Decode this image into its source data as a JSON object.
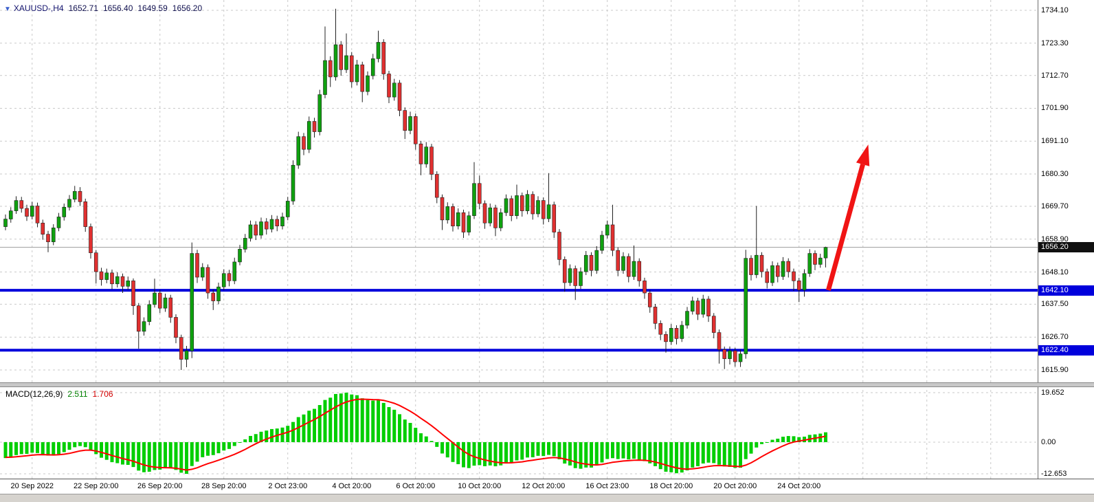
{
  "header": {
    "dropdown_icon": "▼",
    "symbol": "XAUUSD-,H4",
    "open": "1652.71",
    "high": "1656.40",
    "low": "1649.59",
    "close": "1656.20"
  },
  "price_axis": {
    "labels": [
      "1734.10",
      "1723.30",
      "1712.70",
      "1701.90",
      "1691.10",
      "1680.30",
      "1669.70",
      "1658.90",
      "1648.10",
      "1637.50",
      "1626.70",
      "1615.90"
    ],
    "current_tag": "1656.20",
    "line_tags": [
      "1642.10",
      "1622.40"
    ]
  },
  "macd_panel": {
    "label": "MACD(12,26,9)",
    "main_value": "2.511",
    "signal_value": "1.706",
    "axis_labels": [
      "19.652",
      "0.00",
      "-12.653"
    ]
  },
  "annotations": {
    "current_price": 1656.2,
    "horizontal_lines": [
      {
        "price": 1642.1,
        "color": "#0000dc"
      },
      {
        "price": 1622.4,
        "color": "#0000dc"
      }
    ],
    "arrow": {
      "from_index": 154.5,
      "from_price": 1642.1,
      "to_index": 162,
      "to_price": 1690.0,
      "color": "#f01414"
    }
  },
  "colors": {
    "background": "#ffffff",
    "grid": "#c9c9c9",
    "bull_candle": "#0fa00f",
    "bear_candle": "#e03030",
    "wick": "#202020",
    "sr_line": "#0000dc",
    "last_price_line": "#9c9c9c",
    "macd_histogram": "#00ce00",
    "macd_signal": "#ff0000",
    "arrow": "#f01414"
  },
  "chart_data": {
    "type": "candlestick",
    "symbol": "XAUUSD",
    "timeframe": "H4",
    "title": "XAUUSD-,H4 1652.71 1656.40 1649.59 1656.20",
    "price_axis_ticks": [
      1734.1,
      1723.3,
      1712.7,
      1701.9,
      1691.1,
      1680.3,
      1669.7,
      1658.9,
      1648.1,
      1637.5,
      1626.7,
      1615.9
    ],
    "x_tick_labels": [
      "20 Sep 2022",
      "22 Sep 20:00",
      "26 Sep 20:00",
      "28 Sep 20:00",
      "2 Oct 23:00",
      "4 Oct 20:00",
      "6 Oct 20:00",
      "10 Oct 20:00",
      "12 Oct 20:00",
      "16 Oct 23:00",
      "18 Oct 20:00",
      "20 Oct 20:00",
      "24 Oct 20:00"
    ],
    "x_tick_first_candle": 5,
    "x_tick_step": 12,
    "support_levels": [
      1642.1,
      1622.4
    ],
    "last_price": 1656.2,
    "indicator": {
      "name": "MACD",
      "params": [
        12,
        26,
        9
      ],
      "main": 2.511,
      "signal": 1.706,
      "scale_max": 19.652,
      "scale_min": -12.653
    },
    "candles": [
      [
        1663.0,
        1667.0,
        1661.8,
        1665.5
      ],
      [
        1665.5,
        1669.4,
        1664.3,
        1668.2
      ],
      [
        1668.2,
        1673.0,
        1667.2,
        1671.6
      ],
      [
        1671.6,
        1672.8,
        1667.6,
        1669.0
      ],
      [
        1669.0,
        1670.2,
        1664.9,
        1666.4
      ],
      [
        1666.4,
        1671.2,
        1665.4,
        1669.8
      ],
      [
        1669.8,
        1670.9,
        1662.8,
        1664.2
      ],
      [
        1664.2,
        1665.3,
        1658.7,
        1660.5
      ],
      [
        1660.5,
        1661.6,
        1654.6,
        1658.0
      ],
      [
        1658.0,
        1663.8,
        1656.9,
        1662.6
      ],
      [
        1662.6,
        1667.5,
        1661.5,
        1666.2
      ],
      [
        1666.2,
        1670.6,
        1665.0,
        1669.4
      ],
      [
        1669.4,
        1673.4,
        1668.3,
        1672.0
      ],
      [
        1672.0,
        1676.4,
        1671.0,
        1674.6
      ],
      [
        1674.6,
        1676.0,
        1669.8,
        1671.2
      ],
      [
        1671.2,
        1672.2,
        1661.3,
        1663.0
      ],
      [
        1663.0,
        1664.0,
        1652.5,
        1654.4
      ],
      [
        1654.4,
        1655.3,
        1644.3,
        1648.2
      ],
      [
        1648.2,
        1649.5,
        1643.6,
        1645.6
      ],
      [
        1645.6,
        1649.2,
        1644.4,
        1647.8
      ],
      [
        1647.8,
        1648.9,
        1642.4,
        1644.2
      ],
      [
        1644.2,
        1648.0,
        1643.0,
        1646.6
      ],
      [
        1646.6,
        1647.6,
        1641.2,
        1643.4
      ],
      [
        1643.4,
        1646.6,
        1642.2,
        1645.2
      ],
      [
        1645.2,
        1646.0,
        1634.0,
        1637.0
      ],
      [
        1637.0,
        1637.9,
        1622.9,
        1628.6
      ],
      [
        1628.6,
        1633.2,
        1627.2,
        1631.8
      ],
      [
        1631.8,
        1638.8,
        1630.6,
        1637.4
      ],
      [
        1637.4,
        1645.9,
        1636.4,
        1641.2
      ],
      [
        1641.2,
        1642.3,
        1634.6,
        1636.2
      ],
      [
        1636.2,
        1641.0,
        1635.0,
        1639.6
      ],
      [
        1639.6,
        1640.6,
        1631.4,
        1633.2
      ],
      [
        1633.2,
        1634.2,
        1624.7,
        1626.6
      ],
      [
        1626.6,
        1627.5,
        1615.9,
        1619.4
      ],
      [
        1619.4,
        1623.8,
        1616.8,
        1622.2
      ],
      [
        1622.2,
        1657.8,
        1619.8,
        1654.2
      ],
      [
        1654.2,
        1655.4,
        1644.5,
        1646.4
      ],
      [
        1646.4,
        1651.0,
        1645.2,
        1649.6
      ],
      [
        1649.6,
        1650.6,
        1639.3,
        1641.2
      ],
      [
        1641.2,
        1642.4,
        1635.6,
        1638.6
      ],
      [
        1638.6,
        1644.6,
        1637.5,
        1643.2
      ],
      [
        1643.2,
        1649.0,
        1642.1,
        1647.6
      ],
      [
        1647.6,
        1648.8,
        1643.4,
        1645.2
      ],
      [
        1645.2,
        1652.8,
        1644.1,
        1651.4
      ],
      [
        1651.4,
        1657.0,
        1650.3,
        1655.6
      ],
      [
        1655.6,
        1660.6,
        1654.5,
        1659.2
      ],
      [
        1659.2,
        1665.0,
        1658.1,
        1663.6
      ],
      [
        1663.6,
        1664.8,
        1658.6,
        1660.2
      ],
      [
        1660.2,
        1666.0,
        1659.1,
        1664.6
      ],
      [
        1664.6,
        1665.8,
        1660.4,
        1662.2
      ],
      [
        1662.2,
        1666.8,
        1661.1,
        1665.4
      ],
      [
        1665.4,
        1666.6,
        1661.5,
        1663.2
      ],
      [
        1663.2,
        1667.6,
        1662.1,
        1666.2
      ],
      [
        1666.2,
        1672.8,
        1665.1,
        1671.4
      ],
      [
        1671.4,
        1684.8,
        1670.2,
        1683.2
      ],
      [
        1683.2,
        1694.2,
        1682.0,
        1692.6
      ],
      [
        1692.6,
        1693.8,
        1686.5,
        1688.4
      ],
      [
        1688.4,
        1699.2,
        1687.2,
        1697.6
      ],
      [
        1697.6,
        1698.8,
        1692.3,
        1694.2
      ],
      [
        1694.2,
        1708.0,
        1693.0,
        1706.4
      ],
      [
        1706.4,
        1728.8,
        1705.2,
        1717.6
      ],
      [
        1717.6,
        1719.0,
        1708.9,
        1712.2
      ],
      [
        1712.2,
        1734.6,
        1711.0,
        1722.8
      ],
      [
        1722.8,
        1724.0,
        1712.6,
        1714.6
      ],
      [
        1714.6,
        1726.5,
        1713.5,
        1719.2
      ],
      [
        1719.2,
        1720.4,
        1708.7,
        1710.6
      ],
      [
        1710.6,
        1717.8,
        1709.4,
        1716.2
      ],
      [
        1716.2,
        1717.2,
        1703.9,
        1707.4
      ],
      [
        1707.4,
        1714.0,
        1706.2,
        1712.6
      ],
      [
        1712.6,
        1719.8,
        1711.4,
        1718.2
      ],
      [
        1718.2,
        1727.4,
        1717.0,
        1723.6
      ],
      [
        1723.6,
        1724.6,
        1711.3,
        1713.2
      ],
      [
        1713.2,
        1714.2,
        1703.6,
        1705.6
      ],
      [
        1705.6,
        1711.6,
        1704.4,
        1710.2
      ],
      [
        1710.2,
        1711.2,
        1699.3,
        1701.2
      ],
      [
        1701.2,
        1702.2,
        1691.8,
        1694.6
      ],
      [
        1694.6,
        1700.8,
        1693.4,
        1699.2
      ],
      [
        1699.2,
        1700.2,
        1688.3,
        1690.2
      ],
      [
        1690.2,
        1691.2,
        1679.9,
        1683.6
      ],
      [
        1683.6,
        1690.8,
        1682.4,
        1689.2
      ],
      [
        1689.2,
        1690.2,
        1678.3,
        1680.2
      ],
      [
        1680.2,
        1681.2,
        1670.7,
        1672.6
      ],
      [
        1672.6,
        1673.6,
        1661.9,
        1665.2
      ],
      [
        1665.2,
        1671.0,
        1664.0,
        1669.6
      ],
      [
        1669.6,
        1670.6,
        1661.4,
        1663.2
      ],
      [
        1663.2,
        1669.0,
        1662.1,
        1667.6
      ],
      [
        1667.6,
        1668.6,
        1659.3,
        1661.2
      ],
      [
        1661.2,
        1668.0,
        1660.1,
        1666.6
      ],
      [
        1666.6,
        1684.2,
        1665.5,
        1677.2
      ],
      [
        1677.2,
        1679.8,
        1668.7,
        1670.6
      ],
      [
        1670.6,
        1671.6,
        1662.3,
        1664.2
      ],
      [
        1664.2,
        1670.6,
        1663.1,
        1669.2
      ],
      [
        1669.2,
        1670.2,
        1659.9,
        1662.6
      ],
      [
        1662.6,
        1669.0,
        1661.5,
        1667.6
      ],
      [
        1667.6,
        1673.6,
        1666.5,
        1672.2
      ],
      [
        1672.2,
        1673.2,
        1664.8,
        1666.6
      ],
      [
        1666.6,
        1676.8,
        1665.5,
        1673.2
      ],
      [
        1673.2,
        1674.2,
        1666.3,
        1668.2
      ],
      [
        1668.2,
        1675.0,
        1667.1,
        1673.6
      ],
      [
        1673.6,
        1674.6,
        1665.3,
        1667.2
      ],
      [
        1667.2,
        1673.0,
        1666.1,
        1671.6
      ],
      [
        1671.6,
        1672.6,
        1663.7,
        1665.6
      ],
      [
        1665.6,
        1680.6,
        1664.5,
        1670.2
      ],
      [
        1670.2,
        1671.2,
        1659.3,
        1661.2
      ],
      [
        1661.2,
        1662.2,
        1650.3,
        1652.2
      ],
      [
        1652.2,
        1653.2,
        1641.6,
        1644.6
      ],
      [
        1644.6,
        1650.6,
        1643.5,
        1649.2
      ],
      [
        1649.2,
        1650.2,
        1638.9,
        1643.6
      ],
      [
        1643.6,
        1649.6,
        1642.5,
        1648.2
      ],
      [
        1648.2,
        1655.0,
        1647.1,
        1653.6
      ],
      [
        1653.6,
        1654.6,
        1646.7,
        1648.6
      ],
      [
        1648.6,
        1656.6,
        1647.5,
        1655.2
      ],
      [
        1655.2,
        1661.6,
        1654.1,
        1660.2
      ],
      [
        1660.2,
        1665.0,
        1659.1,
        1663.6
      ],
      [
        1663.6,
        1670.2,
        1653.3,
        1655.2
      ],
      [
        1655.2,
        1656.2,
        1646.7,
        1648.6
      ],
      [
        1648.6,
        1654.6,
        1647.5,
        1653.2
      ],
      [
        1653.2,
        1654.2,
        1644.7,
        1646.6
      ],
      [
        1646.6,
        1656.8,
        1645.5,
        1651.6
      ],
      [
        1651.6,
        1652.6,
        1643.3,
        1645.2
      ],
      [
        1645.2,
        1646.2,
        1639.3,
        1641.2
      ],
      [
        1641.2,
        1642.2,
        1634.7,
        1636.6
      ],
      [
        1636.6,
        1637.6,
        1629.3,
        1631.2
      ],
      [
        1631.2,
        1632.2,
        1625.7,
        1627.6
      ],
      [
        1627.6,
        1628.6,
        1621.6,
        1625.2
      ],
      [
        1625.2,
        1631.0,
        1624.1,
        1629.6
      ],
      [
        1629.6,
        1630.6,
        1624.3,
        1626.2
      ],
      [
        1626.2,
        1632.0,
        1625.1,
        1630.6
      ],
      [
        1630.6,
        1636.6,
        1629.5,
        1635.2
      ],
      [
        1635.2,
        1640.0,
        1634.1,
        1638.6
      ],
      [
        1638.6,
        1639.6,
        1632.3,
        1634.2
      ],
      [
        1634.2,
        1640.6,
        1633.1,
        1639.2
      ],
      [
        1639.2,
        1640.2,
        1631.7,
        1633.6
      ],
      [
        1633.6,
        1634.6,
        1626.3,
        1628.2
      ],
      [
        1628.2,
        1629.2,
        1618.0,
        1622.6
      ],
      [
        1622.6,
        1623.6,
        1616.2,
        1619.6
      ],
      [
        1619.6,
        1623.6,
        1617.7,
        1622.2
      ],
      [
        1622.2,
        1623.2,
        1617.0,
        1618.6
      ],
      [
        1618.6,
        1622.6,
        1616.9,
        1621.2
      ],
      [
        1621.2,
        1655.4,
        1619.6,
        1652.6
      ],
      [
        1652.6,
        1653.6,
        1645.3,
        1647.2
      ],
      [
        1647.2,
        1669.8,
        1646.1,
        1653.6
      ],
      [
        1653.6,
        1654.6,
        1646.3,
        1648.2
      ],
      [
        1648.2,
        1649.2,
        1642.7,
        1644.6
      ],
      [
        1644.6,
        1651.6,
        1643.5,
        1650.2
      ],
      [
        1650.2,
        1651.2,
        1644.7,
        1646.6
      ],
      [
        1646.6,
        1653.0,
        1645.5,
        1651.6
      ],
      [
        1651.6,
        1652.6,
        1646.3,
        1648.2
      ],
      [
        1648.2,
        1649.2,
        1641.9,
        1645.2
      ],
      [
        1645.2,
        1646.2,
        1638.2,
        1642.2
      ],
      [
        1642.2,
        1649.0,
        1640.0,
        1647.6
      ],
      [
        1647.6,
        1655.6,
        1646.5,
        1654.2
      ],
      [
        1654.2,
        1655.2,
        1648.7,
        1650.6
      ],
      [
        1650.6,
        1654.1,
        1649.5,
        1652.7
      ],
      [
        1652.71,
        1656.4,
        1649.59,
        1656.2
      ]
    ]
  }
}
